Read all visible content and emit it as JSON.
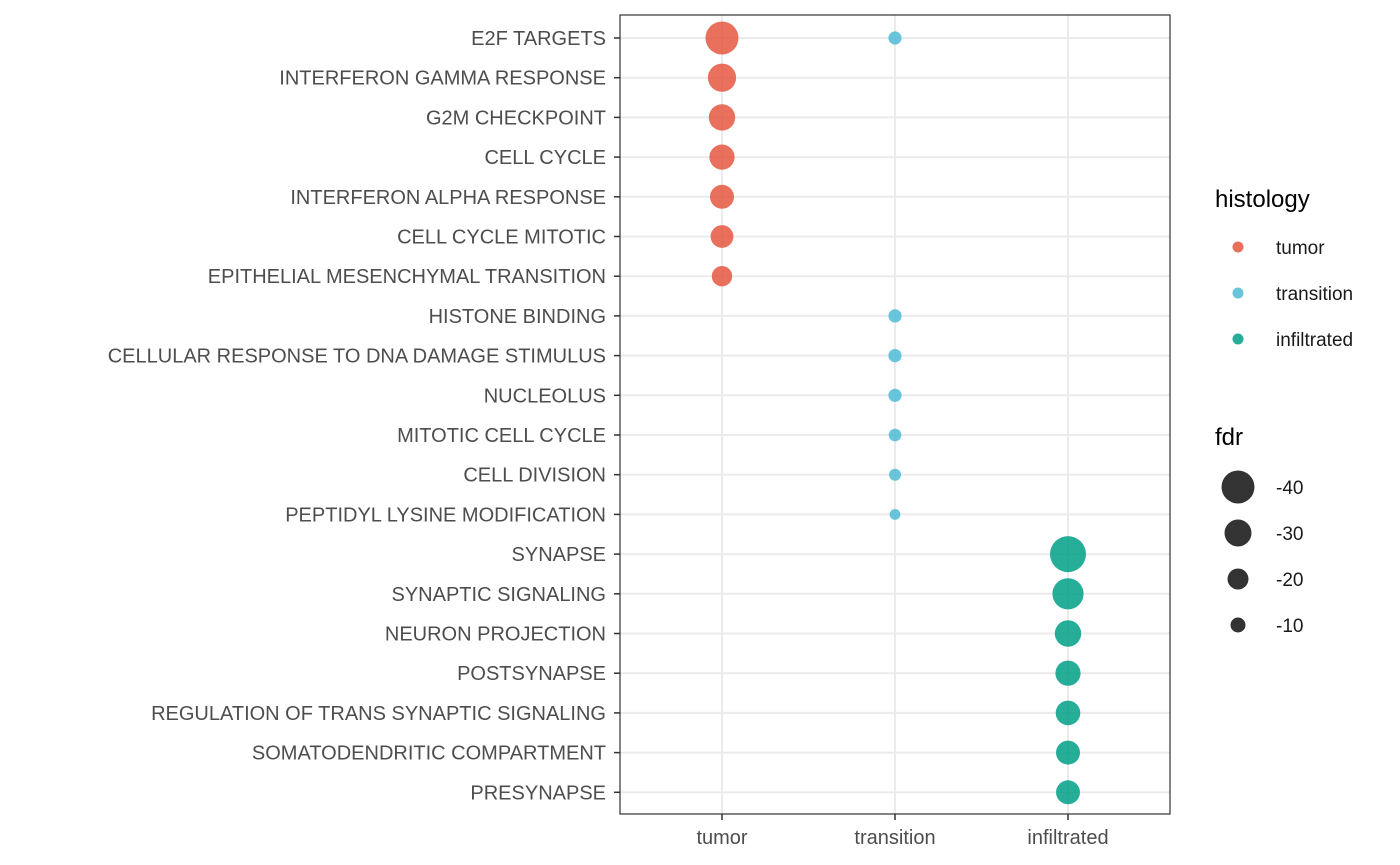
{
  "chart_data": {
    "type": "scatter",
    "title": "",
    "xlabel": "",
    "ylabel": "",
    "x_categories": [
      "tumor",
      "transition",
      "infiltrated"
    ],
    "y_categories": [
      "E2F TARGETS",
      "INTERFERON GAMMA RESPONSE",
      "G2M CHECKPOINT",
      "CELL CYCLE",
      "INTERFERON ALPHA RESPONSE",
      "CELL CYCLE MITOTIC",
      "EPITHELIAL MESENCHYMAL TRANSITION",
      "HISTONE BINDING",
      "CELLULAR RESPONSE TO DNA DAMAGE STIMULUS",
      "NUCLEOLUS",
      "MITOTIC CELL CYCLE",
      "CELL DIVISION",
      "PEPTIDYL LYSINE MODIFICATION",
      "SYNAPSE",
      "SYNAPTIC SIGNALING",
      "NEURON PROJECTION",
      "POSTSYNAPSE",
      "REGULATION OF TRANS SYNAPTIC SIGNALING",
      "SOMATODENDRITIC COMPARTMENT",
      "PRESYNAPSE"
    ],
    "series": [
      {
        "name": "tumor",
        "color": "#E4573F",
        "points": [
          {
            "y": "E2F TARGETS",
            "fdr": -40
          },
          {
            "y": "INTERFERON GAMMA RESPONSE",
            "fdr": -32
          },
          {
            "y": "G2M CHECKPOINT",
            "fdr": -29
          },
          {
            "y": "CELL CYCLE",
            "fdr": -27
          },
          {
            "y": "INTERFERON ALPHA RESPONSE",
            "fdr": -25
          },
          {
            "y": "CELL CYCLE MITOTIC",
            "fdr": -23
          },
          {
            "y": "EPITHELIAL MESENCHYMAL TRANSITION",
            "fdr": -19
          }
        ]
      },
      {
        "name": "transition",
        "color": "#4DBBD5",
        "points": [
          {
            "y": "E2F TARGETS",
            "fdr": -7
          },
          {
            "y": "HISTONE BINDING",
            "fdr": -7
          },
          {
            "y": "CELLULAR RESPONSE TO DNA DAMAGE STIMULUS",
            "fdr": -7
          },
          {
            "y": "NUCLEOLUS",
            "fdr": -7
          },
          {
            "y": "MITOTIC CELL CYCLE",
            "fdr": -6
          },
          {
            "y": "CELL DIVISION",
            "fdr": -5
          },
          {
            "y": "PEPTIDYL LYSINE MODIFICATION",
            "fdr": -3
          }
        ]
      },
      {
        "name": "infiltrated",
        "color": "#00A087",
        "points": [
          {
            "y": "SYNAPSE",
            "fdr": -45
          },
          {
            "y": "SYNAPTIC SIGNALING",
            "fdr": -37
          },
          {
            "y": "NEURON PROJECTION",
            "fdr": -29
          },
          {
            "y": "POSTSYNAPSE",
            "fdr": -27
          },
          {
            "y": "REGULATION OF TRANS SYNAPTIC SIGNALING",
            "fdr": -26
          },
          {
            "y": "SOMATODENDRITIC COMPARTMENT",
            "fdr": -25
          },
          {
            "y": "PRESYNAPSE",
            "fdr": -25
          }
        ]
      }
    ],
    "grid": true,
    "legend": {
      "placement": "right",
      "color_title": "histology",
      "color_entries": [
        {
          "label": "tumor",
          "color": "#E4573F"
        },
        {
          "label": "transition",
          "color": "#4DBBD5"
        },
        {
          "label": "infiltrated",
          "color": "#00A087"
        }
      ],
      "size_title": "fdr",
      "size_entries": [
        {
          "label": "-40",
          "value": -40
        },
        {
          "label": "-30",
          "value": -30
        },
        {
          "label": "-20",
          "value": -20
        },
        {
          "label": "-10",
          "value": -10
        }
      ]
    }
  }
}
